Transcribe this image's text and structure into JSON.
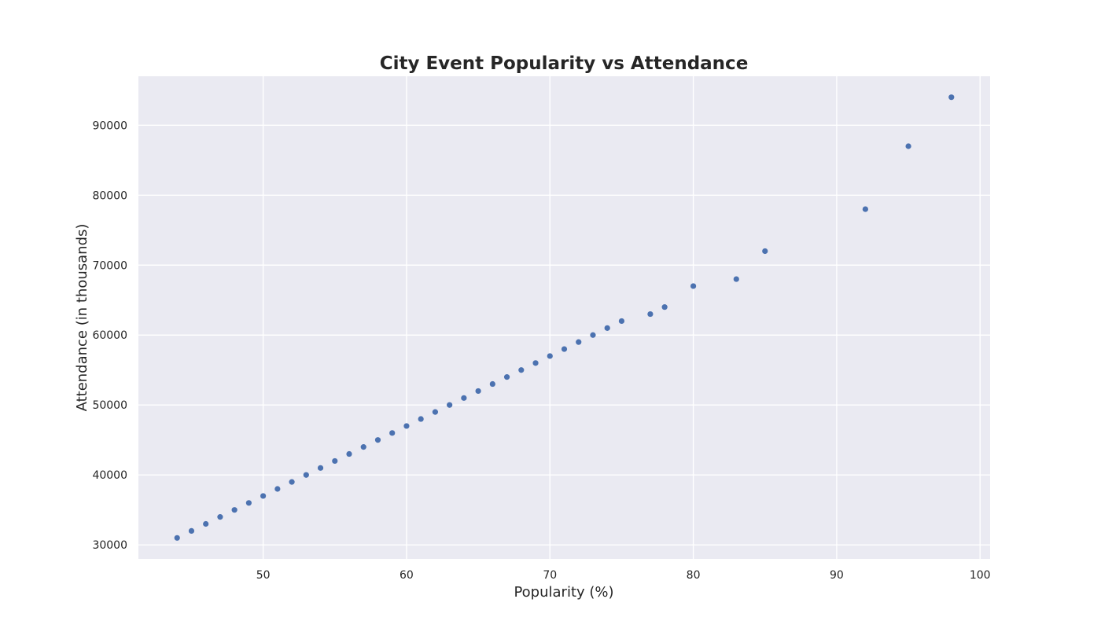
{
  "chart_data": {
    "type": "scatter",
    "title": "City Event Popularity vs Attendance",
    "xlabel": "Popularity (%)",
    "ylabel": "Attendance (in thousands)",
    "xlim": [
      41.3,
      100.7
    ],
    "ylim": [
      28000,
      97000
    ],
    "xticks": [
      50,
      60,
      70,
      80,
      90,
      100
    ],
    "yticks": [
      30000,
      40000,
      50000,
      60000,
      70000,
      80000,
      90000
    ],
    "grid": true,
    "legend": "none",
    "colors": {
      "plot_background": "#eaeaf2",
      "grid": "#ffffff",
      "marker": "#4c72b0",
      "text": "#262626"
    },
    "series": [
      {
        "x": [
          44,
          45,
          46,
          47,
          48,
          49,
          50,
          51,
          52,
          53,
          54,
          55,
          56,
          57,
          58,
          59,
          60,
          61,
          62,
          63,
          64,
          65,
          66,
          67,
          68,
          69,
          70,
          71,
          72,
          73,
          74,
          75,
          77,
          78,
          80,
          83,
          85,
          92,
          95,
          98
        ],
        "y": [
          31000,
          32000,
          33000,
          34000,
          35000,
          36000,
          37000,
          38000,
          39000,
          40000,
          41000,
          42000,
          43000,
          44000,
          45000,
          46000,
          47000,
          48000,
          49000,
          50000,
          51000,
          52000,
          53000,
          54000,
          55000,
          56000,
          57000,
          58000,
          59000,
          60000,
          61000,
          62000,
          63000,
          64000,
          67000,
          68000,
          72000,
          78000,
          87000,
          94000
        ]
      }
    ]
  }
}
